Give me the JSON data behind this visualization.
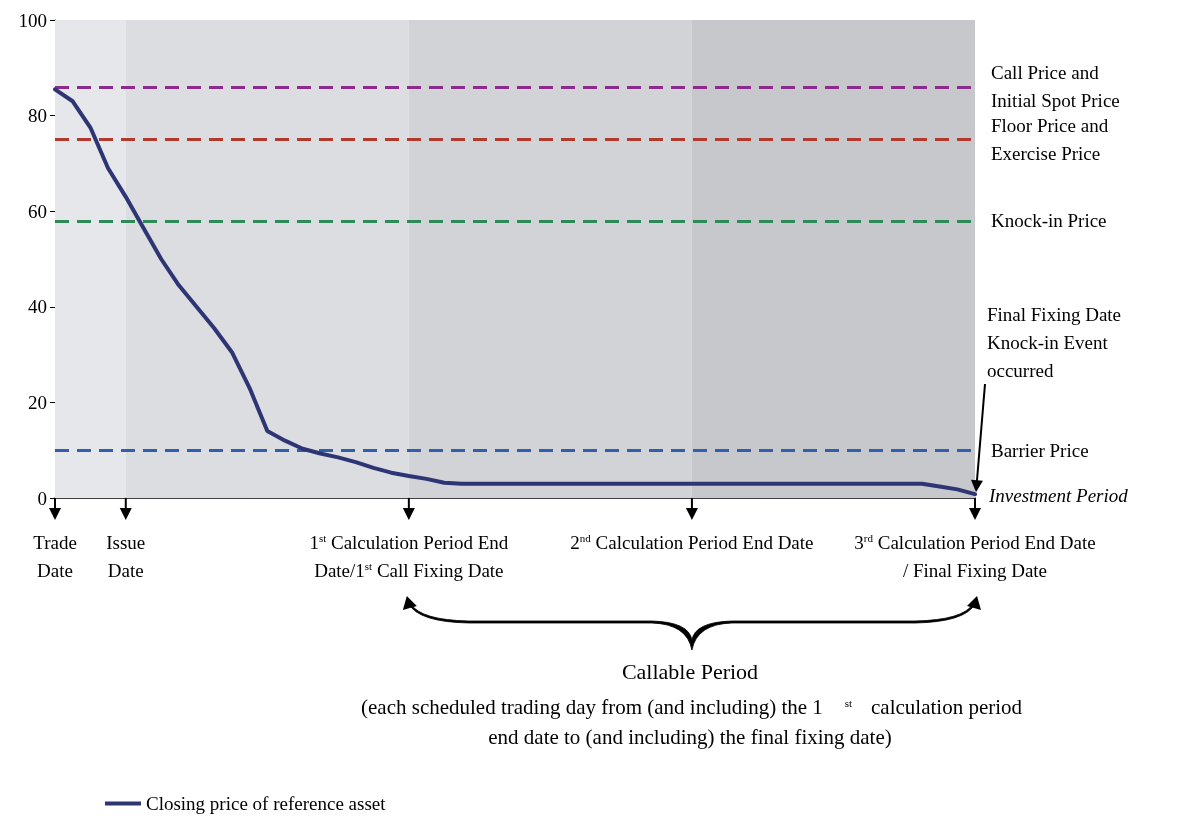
{
  "chart_data": {
    "type": "line",
    "categories": [
      "Trade Date",
      null,
      null,
      null,
      "Issue Date",
      null,
      null,
      null,
      null,
      null,
      null,
      null,
      null,
      null,
      null,
      null,
      null,
      null,
      null,
      null,
      "1$^{st}$ Calculation Period End Date/1$^{st}$ Call Fixing Date",
      null,
      null,
      null,
      null,
      null,
      null,
      null,
      null,
      null,
      null,
      null,
      null,
      null,
      null,
      null,
      "2$^{nd}$ Calculation Period End Date",
      null,
      null,
      null,
      null,
      null,
      null,
      null,
      null,
      null,
      null,
      null,
      null,
      null,
      null,
      null,
      "3$^{rd}$ Calculation Period End Date / Final Fixing Date"
    ],
    "series": [
      {
        "name": "Closing price of reference asset",
        "color": "#2e3575",
        "values": [
          85.5,
          83,
          77.5,
          69,
          63,
          56.5,
          50,
          44.5,
          40,
          35.5,
          30.5,
          23,
          14,
          12,
          10.3,
          9.3,
          8.5,
          7.5,
          6.3,
          5.3,
          4.6,
          4,
          3.2,
          3,
          3,
          3,
          3,
          3,
          3,
          3,
          3,
          3,
          3,
          3,
          3,
          3,
          3,
          3,
          3,
          3,
          3,
          3,
          3,
          3,
          3,
          3,
          3,
          3,
          3,
          3,
          2.4,
          1.8,
          0.8
        ]
      }
    ],
    "ylim": [
      0,
      100
    ],
    "yticks": [
      0,
      20,
      40,
      60,
      80,
      100
    ],
    "grid": false,
    "legend": "bottom left",
    "marker": "none",
    "line_style": "solid",
    "ref_lines": [
      {
        "axis": "y",
        "value": 86,
        "label": "Call Price and Initial Spot Price",
        "color": "#8b2c8c",
        "line_style": "dashed"
      },
      {
        "axis": "y",
        "value": 75,
        "label": "Floor Price and Exercise Price",
        "color": "#b03a2e",
        "line_style": "dashed"
      },
      {
        "axis": "y",
        "value": 58,
        "label": "Knock-in Price",
        "color": "#2e8b57",
        "line_style": "dashed"
      },
      {
        "axis": "y",
        "value": 10,
        "label": "Barrier Price",
        "color": "#2f5fad",
        "line_style": "dashed"
      }
    ],
    "bands": [
      {
        "axis": "x",
        "from": "Trade Date",
        "to": "Issue Date",
        "color": "#e6e7ea"
      },
      {
        "axis": "x",
        "from": "Issue Date",
        "to": "1$^{st}$ Calculation Period End Date/1$^{st}$ Call Fixing Date",
        "color": "#dcdde0"
      },
      {
        "axis": "x",
        "from": "1$^{st}$ Calculation Period End Date/1$^{st}$ Call Fixing Date",
        "to": "2$^{nd}$ Calculation Period End Date",
        "color": "#d2d3d6"
      },
      {
        "axis": "x",
        "from": "2$^{nd}$ Calculation Period End Date",
        "to": "3$^{rd}$ Calculation Period End Date / Final Fixing Date",
        "color": "#c7c8cb"
      }
    ],
    "annotations": [
      "Investment Period",
      "Final Fixing Date Knock-in Event occurred",
      "Callable Period",
      "(each scheduled trading day from (and including) the 1$^{st}$ calculation period end date to (and including) the final fixing date)"
    ]
  }
}
